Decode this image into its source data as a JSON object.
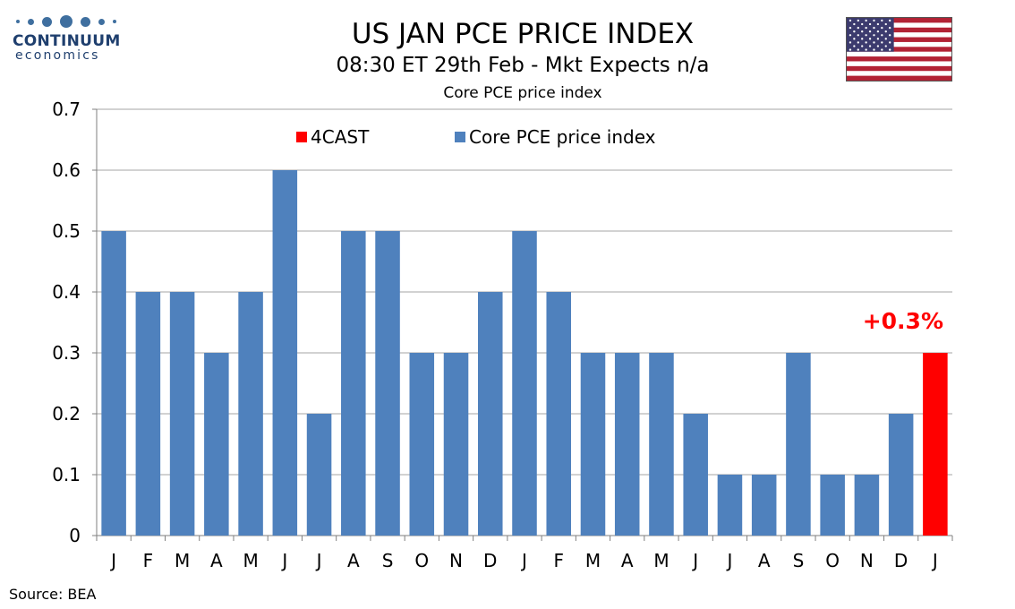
{
  "header": {
    "logo_name": "CONTINUUM",
    "logo_sub": "economics",
    "title": "US JAN PCE PRICE INDEX",
    "subtitle": "08:30 ET 29th Feb - Mkt Expects n/a",
    "chart_title": "Core PCE price index"
  },
  "footer": {
    "source": "Source: BEA"
  },
  "flag": {
    "name": "us-flag-icon",
    "red": "#b22234",
    "white": "#ffffff",
    "blue": "#3c3b6e"
  },
  "colors": {
    "series": "#4f81bd",
    "forecast": "#ff0000",
    "grid": "#a6a6a6"
  },
  "chart_data": {
    "type": "bar",
    "categories": [
      "J",
      "F",
      "M",
      "A",
      "M",
      "J",
      "J",
      "A",
      "S",
      "O",
      "N",
      "D",
      "J",
      "F",
      "M",
      "A",
      "M",
      "J",
      "J",
      "A",
      "S",
      "O",
      "N",
      "D",
      "J"
    ],
    "series": [
      {
        "name": "Core PCE price index",
        "values": [
          0.5,
          0.4,
          0.4,
          0.3,
          0.4,
          0.6,
          0.2,
          0.5,
          0.5,
          0.3,
          0.3,
          0.4,
          0.5,
          0.4,
          0.3,
          0.3,
          0.3,
          0.2,
          0.1,
          0.1,
          0.3,
          0.1,
          0.1,
          0.2,
          null
        ]
      },
      {
        "name": "4CAST",
        "values": [
          null,
          null,
          null,
          null,
          null,
          null,
          null,
          null,
          null,
          null,
          null,
          null,
          null,
          null,
          null,
          null,
          null,
          null,
          null,
          null,
          null,
          null,
          null,
          null,
          0.3
        ]
      }
    ],
    "ylim": [
      0,
      0.7
    ],
    "yticks": [
      "0",
      "0.1",
      "0.2",
      "0.3",
      "0.4",
      "0.5",
      "0.6",
      "0.7"
    ],
    "ytick_values": [
      0,
      0.1,
      0.2,
      0.3,
      0.4,
      0.5,
      0.6,
      0.7
    ],
    "annotation": {
      "text": "+0.3%",
      "category_index": 24,
      "value": 0.3
    },
    "legend": [
      "4CAST",
      "Core PCE price index"
    ],
    "legend_position": "top-center",
    "grid": true
  }
}
